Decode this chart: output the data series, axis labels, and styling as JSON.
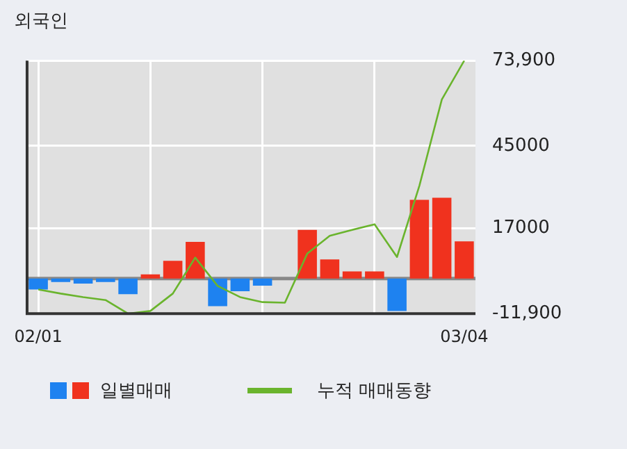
{
  "chart_data": {
    "type": "bar",
    "title": "외국인",
    "categories": [
      "02/01",
      null,
      null,
      null,
      null,
      null,
      null,
      null,
      null,
      null,
      null,
      null,
      null,
      null,
      null,
      null,
      null,
      null,
      null,
      "03/04"
    ],
    "series": [
      {
        "name": "일별매매",
        "colors": [
          "#1e82f0",
          "#1e82f0",
          "#1e82f0",
          "#1e82f0",
          "#1e82f0",
          "#f0321e",
          "#f0321e",
          "#f0321e",
          "#1e82f0",
          "#1e82f0",
          "#1e82f0",
          "#f0321e",
          "#f0321e",
          "#f0321e",
          "#f0321e",
          "#f0321e",
          "#1e82f0",
          "#f0321e",
          "#f0321e",
          "#f0321e"
        ],
        "values": [
          -3700,
          -1200,
          -1700,
          -1200,
          -5300,
          1400,
          6000,
          12400,
          -9400,
          -4300,
          -2400,
          0,
          16500,
          6500,
          2400,
          2400,
          -11000,
          26700,
          27400,
          12600
        ]
      },
      {
        "name": "누적 매매동향",
        "type": "line",
        "color": "#6ab42d",
        "values": [
          -3700,
          -5100,
          -6300,
          -7300,
          -11900,
          -11000,
          -5100,
          7100,
          -2500,
          -6300,
          -8000,
          -8200,
          8500,
          14500,
          16500,
          18400,
          7300,
          31500,
          60700,
          73900
        ]
      }
    ],
    "ylim": [
      -11900,
      73900
    ],
    "yticks": [
      {
        "value": 73900,
        "label": "73,900"
      },
      45000,
      17000,
      {
        "value": -11900,
        "label": "-11,900"
      }
    ],
    "ref_lines": [
      {
        "axis": "y",
        "value": 0,
        "color": "#888888"
      }
    ],
    "grid": true,
    "legend": "bottom",
    "marker": "none"
  }
}
